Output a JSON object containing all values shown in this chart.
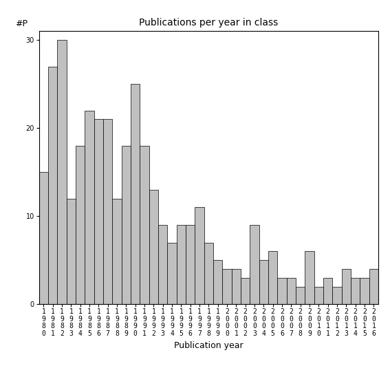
{
  "title": "Publications per year in class",
  "xlabel": "Publication year",
  "ylabel": "#P",
  "bar_color": "#c0c0c0",
  "edge_color": "#000000",
  "background_color": "#ffffff",
  "ylim": [
    0,
    31
  ],
  "yticks": [
    0,
    10,
    20,
    30
  ],
  "years": [
    1980,
    1981,
    1982,
    1983,
    1984,
    1985,
    1986,
    1987,
    1988,
    1989,
    1990,
    1991,
    1992,
    1993,
    1994,
    1995,
    1996,
    1997,
    1998,
    1999,
    2000,
    2001,
    2002,
    2003,
    2004,
    2005,
    2006,
    2007,
    2008,
    2009,
    2010,
    2011,
    2012,
    2013,
    2014,
    2015,
    2016
  ],
  "values": [
    15,
    27,
    30,
    12,
    18,
    22,
    21,
    21,
    12,
    18,
    25,
    18,
    13,
    9,
    7,
    9,
    9,
    11,
    7,
    5,
    4,
    4,
    3,
    9,
    5,
    6,
    3,
    3,
    2,
    6,
    2,
    3,
    2,
    4,
    3,
    3,
    4
  ],
  "title_fontsize": 10,
  "label_fontsize": 9,
  "tick_fontsize": 7
}
